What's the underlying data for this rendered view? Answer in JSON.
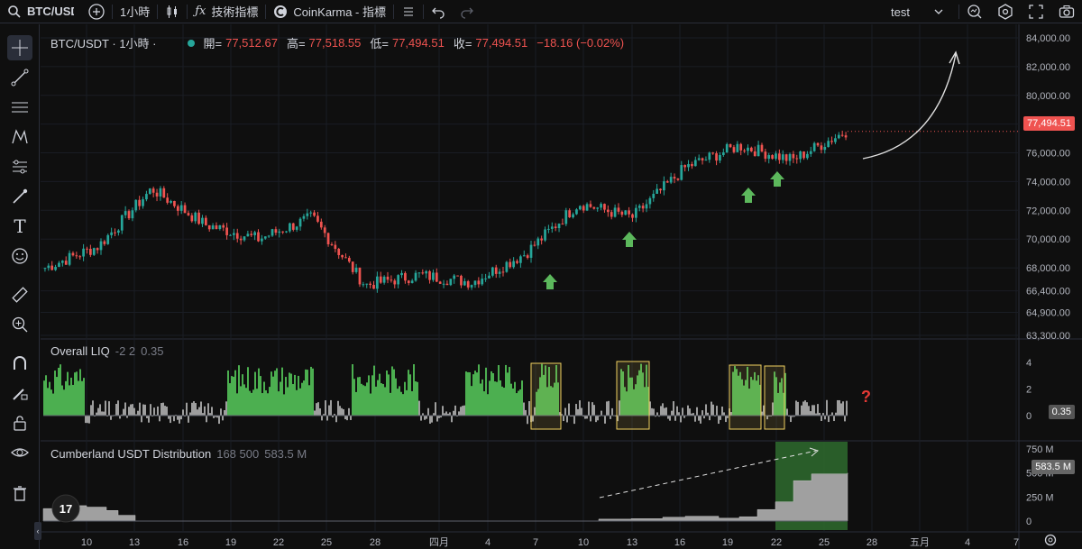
{
  "toolbar": {
    "symbol": "BTC/USDT",
    "interval": "1小時",
    "indicators_label": "技術指標",
    "coinkarma_label": "CoinKarma - 指標",
    "layout_name": "test"
  },
  "legend": {
    "symbol": "BTC/USDT · 1小時 ·",
    "open_label": "開=",
    "open": "77,512.67",
    "high_label": "高=",
    "high": "77,518.55",
    "low_label": "低=",
    "low": "77,494.51",
    "close_label": "收=",
    "close": "77,494.51",
    "change": "−18.16 (−0.02%)"
  },
  "indicators": {
    "liq": {
      "name": "Overall LIQ",
      "params": "-2 2",
      "value": "0.35",
      "question": "?"
    },
    "cumberland": {
      "name": "Cumberland USDT Distribution",
      "params": "168 500",
      "value": "583.5 M",
      "badge": "583.5 M"
    }
  },
  "price_axis": {
    "labels": [
      "84,000.00",
      "82,000.00",
      "80,000.00",
      "78,000.00",
      "76,000.00",
      "74,000.00",
      "72,000.00",
      "70,000.00",
      "68,000.00",
      "66,400.00",
      "64,900.00",
      "63,300.00"
    ],
    "current": "77,494.51"
  },
  "liq_axis": {
    "labels": [
      "4",
      "2",
      "0"
    ],
    "current": "0.35"
  },
  "cumberland_axis": {
    "labels": [
      "750 M",
      "500 M",
      "250 M",
      "0"
    ]
  },
  "time_axis": [
    "10",
    "13",
    "16",
    "19",
    "22",
    "25",
    "28",
    "四月",
    "4",
    "7",
    "10",
    "13",
    "16",
    "19",
    "22",
    "25",
    "28",
    "五月",
    "4",
    "7"
  ],
  "colors": {
    "up": "#26a69a",
    "down": "#ef5350",
    "liq_green": "#4caf50",
    "liq_grey": "#9e9e9e",
    "box": "#f0d060",
    "arrow": "#5cb85c",
    "bg": "#0f0f0f"
  },
  "chart_data": [
    {
      "type": "line",
      "title": "BTC/USDT · 1小時",
      "x": [
        "10",
        "13",
        "16",
        "19",
        "22",
        "25",
        "28",
        "四月",
        "4",
        "7",
        "10",
        "13",
        "16",
        "19",
        "22",
        "25"
      ],
      "series": [
        {
          "name": "BTC/USDT",
          "values": [
            68000,
            69500,
            73500,
            71000,
            70000,
            71500,
            66800,
            67500,
            67000,
            69000,
            72500,
            71500,
            75000,
            76500,
            75500,
            77500
          ]
        }
      ],
      "ylim": [
        63300,
        84000
      ],
      "grid": true
    },
    {
      "type": "bar",
      "title": "Overall LIQ",
      "ylim": [
        -1,
        4.5
      ],
      "current": 0.35
    },
    {
      "type": "area",
      "title": "Cumberland USDT Distribution",
      "ylim": [
        0,
        800
      ],
      "current": 583.5
    }
  ]
}
